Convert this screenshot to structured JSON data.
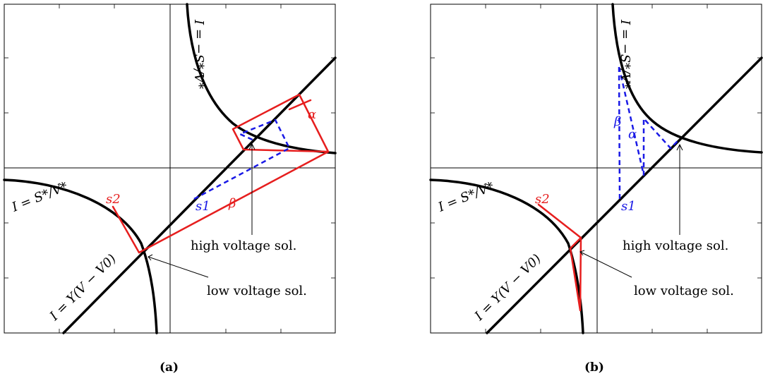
{
  "panels": [
    {
      "caption": "(a)",
      "labels": {
        "curve_top": "I = −S*/V*",
        "curve_left": "I = S*/V*",
        "line": "I = Y(V − V0)",
        "alpha": "α",
        "beta": "β",
        "s1": "s1",
        "s2": "s2",
        "high": "high voltage sol.",
        "low": "low voltage sol."
      }
    },
    {
      "caption": "(b)",
      "labels": {
        "curve_top": "I = −S*/V*",
        "curve_left": "I = S*/V*",
        "line": "I = Y(V − V0)",
        "alpha": "α",
        "beta": "β",
        "s1": "s1",
        "s2": "s2",
        "high": "high voltage sol.",
        "low": "low voltage sol."
      }
    }
  ],
  "colors": {
    "construction": "#e61e1e",
    "iteration": "#1a1ae6",
    "curves": "#000000"
  }
}
